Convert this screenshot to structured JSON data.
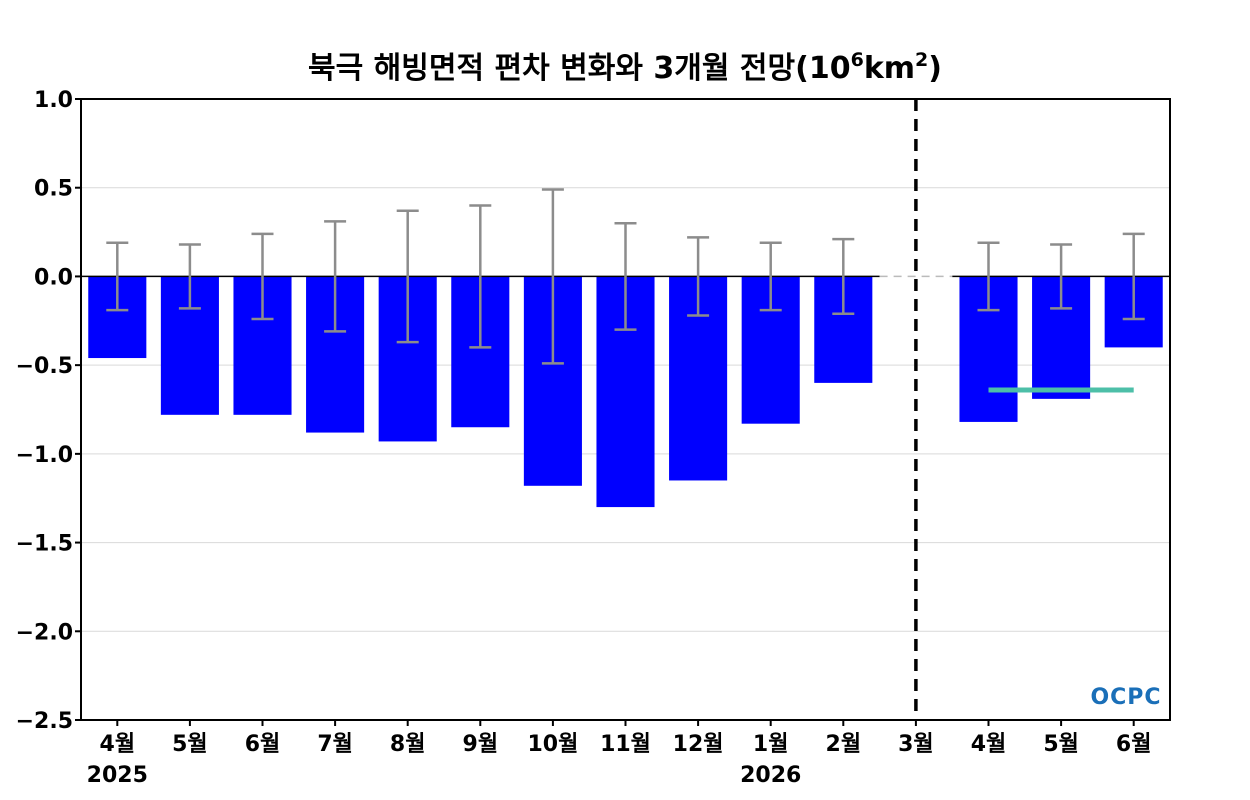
{
  "chart_data": {
    "type": "bar",
    "title": "북극 해빙면적 편차 변화와 3개월 전망(10⁶km²)",
    "title_main": "북극 해빙면적 편차 변화와 3개월 전망(10",
    "title_exp1": "6",
    "title_unit": "km",
    "title_exp2": "2",
    "title_close": ")",
    "categories": [
      "4월",
      "5월",
      "6월",
      "7월",
      "8월",
      "9월",
      "10월",
      "11월",
      "12월",
      "1월",
      "2월",
      "3월",
      "4월",
      "5월",
      "6월"
    ],
    "year_labels": [
      {
        "label": "2025",
        "category_index": 0
      },
      {
        "label": "2026",
        "category_index": 9
      }
    ],
    "series": [
      {
        "values": [
          -0.46,
          -0.78,
          -0.78,
          -0.88,
          -0.93,
          -0.85,
          -1.18,
          -1.3,
          -1.15,
          -0.83,
          -0.6,
          null,
          -0.82,
          -0.69,
          -0.4
        ],
        "color": "#0000ff"
      }
    ],
    "error_bars": [
      0.19,
      0.18,
      0.24,
      0.31,
      0.37,
      0.4,
      0.49,
      0.3,
      0.22,
      0.19,
      0.21,
      null,
      0.19,
      0.18,
      0.24
    ],
    "error_bar_color": "#8c8c8c",
    "forecast_divider_index": 11,
    "forecast_line": {
      "value": -0.64,
      "from_index": 12,
      "to_index": 14,
      "color": "#4dbfa8"
    },
    "ylim": [
      -2.5,
      1.0
    ],
    "yticks": [
      1.0,
      0.5,
      0.0,
      -0.5,
      -1.0,
      -1.5,
      -2.0,
      -2.5
    ],
    "ytick_labels": [
      "1.0",
      "0.5",
      "0.0",
      "−0.5",
      "−1.0",
      "−1.5",
      "−2.0",
      "−2.5"
    ],
    "grid": true,
    "xlabel": "",
    "ylabel": ""
  },
  "logo": {
    "text": "OCPC",
    "color": "#1a6fb8"
  }
}
